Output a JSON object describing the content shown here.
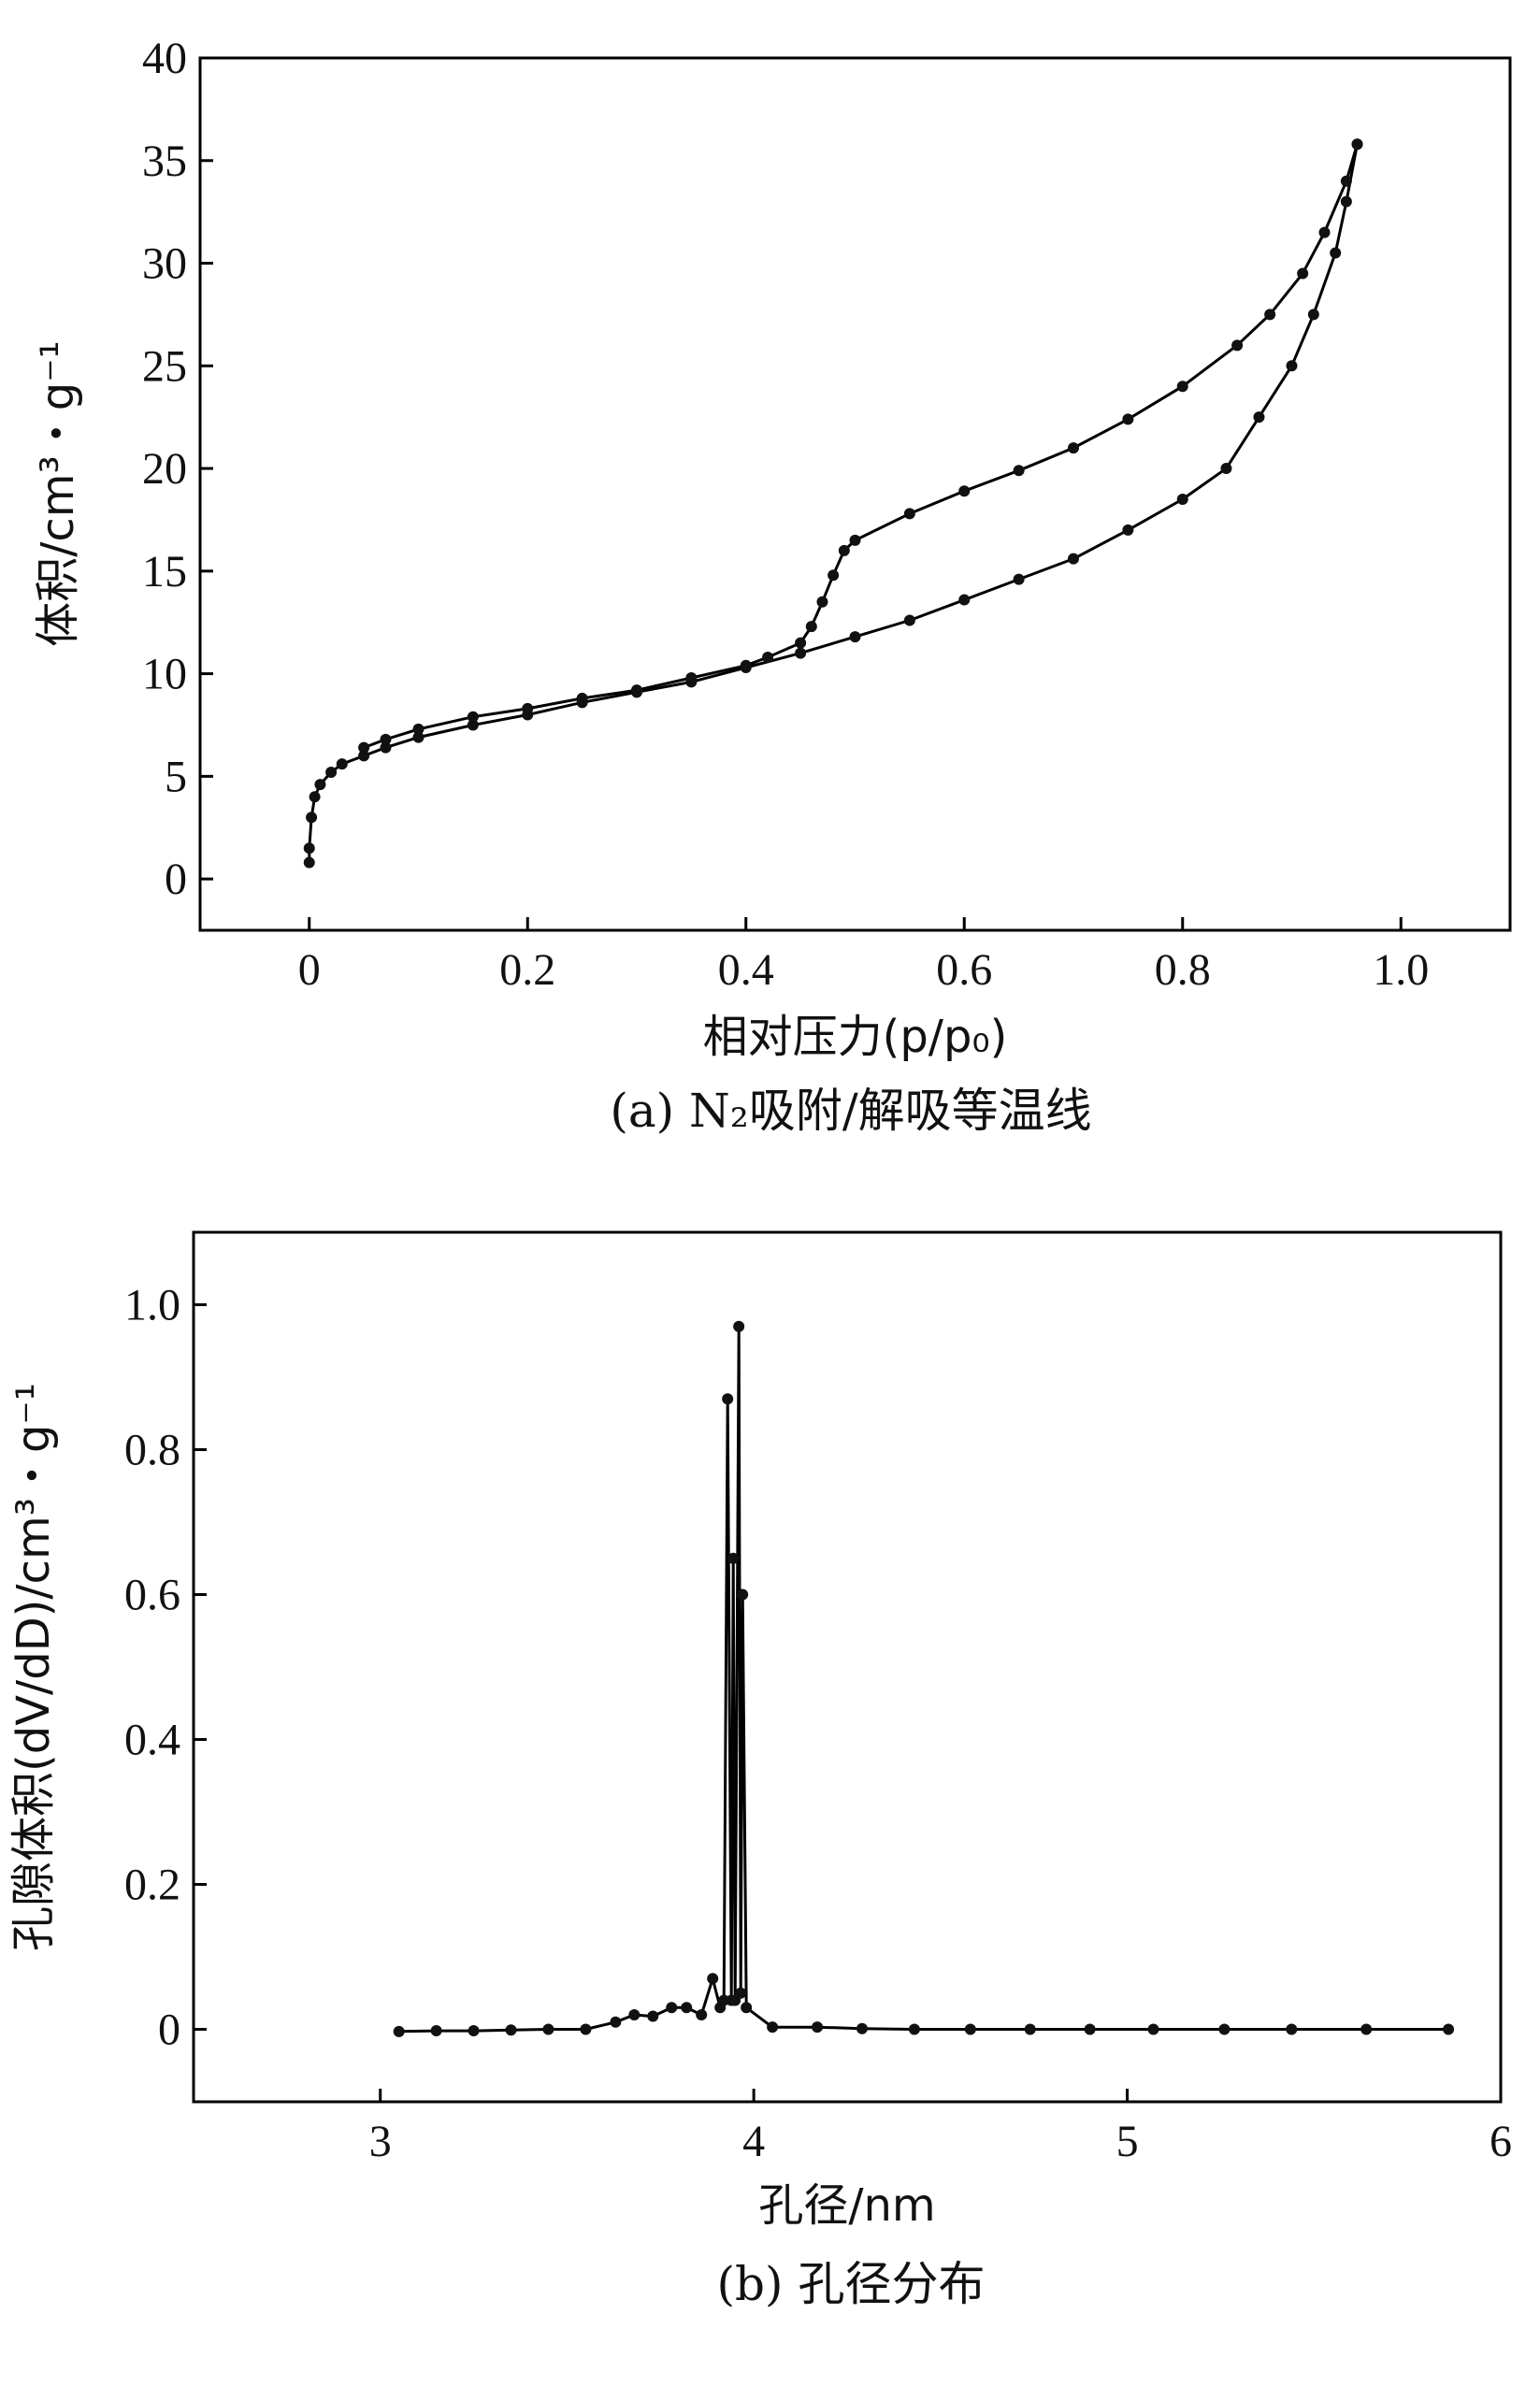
{
  "chart_data": [
    {
      "type": "line",
      "caption": "(a) N₂吸附/解吸等温线",
      "xlabel": "相对压力(p/p₀)",
      "ylabel": "体积/cm³・g⁻¹",
      "xlim": [
        -0.1,
        1.1
      ],
      "ylim": [
        -2.5,
        40
      ],
      "x_ticks": [
        0,
        0.2,
        0.4,
        0.6,
        0.8,
        1.0
      ],
      "x_tick_labels": [
        "0",
        "0.2",
        "0.4",
        "0.6",
        "0.8",
        "1.0"
      ],
      "y_ticks": [
        0,
        5,
        10,
        15,
        20,
        25,
        30,
        35,
        40
      ],
      "y_tick_labels": [
        "0",
        "5",
        "10",
        "15",
        "20",
        "25",
        "30",
        "35",
        "40"
      ],
      "grid": false,
      "series": [
        {
          "x": [
            0.0,
            0.0,
            0.002,
            0.005,
            0.01,
            0.02,
            0.03,
            0.05,
            0.07,
            0.1,
            0.15,
            0.2,
            0.25,
            0.3,
            0.35,
            0.4,
            0.45,
            0.5,
            0.55,
            0.6,
            0.65,
            0.7,
            0.75,
            0.8,
            0.84,
            0.87,
            0.9,
            0.92,
            0.94,
            0.95,
            0.96
          ],
          "y": [
            0.8,
            1.5,
            3.0,
            4.0,
            4.6,
            5.2,
            5.6,
            6.0,
            6.4,
            6.9,
            7.5,
            8.0,
            8.6,
            9.1,
            9.6,
            10.3,
            11.0,
            11.8,
            12.6,
            13.6,
            14.6,
            15.6,
            17.0,
            18.5,
            20.0,
            22.5,
            25.0,
            27.5,
            30.5,
            33.0,
            35.8
          ]
        },
        {
          "x": [
            0.96,
            0.95,
            0.93,
            0.91,
            0.88,
            0.85,
            0.8,
            0.75,
            0.7,
            0.65,
            0.6,
            0.55,
            0.5,
            0.49,
            0.48,
            0.47,
            0.46,
            0.45,
            0.42,
            0.4,
            0.35,
            0.3,
            0.25,
            0.2,
            0.15,
            0.1,
            0.07,
            0.05
          ],
          "y": [
            35.8,
            34.0,
            31.5,
            29.5,
            27.5,
            26.0,
            24.0,
            22.4,
            21.0,
            19.9,
            18.9,
            17.8,
            16.5,
            16.0,
            14.8,
            13.5,
            12.3,
            11.5,
            10.8,
            10.4,
            9.8,
            9.2,
            8.8,
            8.3,
            7.9,
            7.3,
            6.8,
            6.4
          ]
        }
      ]
    },
    {
      "type": "line",
      "caption": "(b) 孔径分布",
      "xlabel": "孔径/nm",
      "ylabel": "孔隙体积(dV/dD)/cm³・g⁻¹",
      "xlim": [
        2.5,
        6
      ],
      "ylim": [
        -0.1,
        1.1
      ],
      "x_ticks": [
        3,
        4,
        5,
        6
      ],
      "x_tick_labels": [
        "3",
        "4",
        "5",
        "6"
      ],
      "y_ticks": [
        0,
        0.2,
        0.4,
        0.6,
        0.8,
        1.0
      ],
      "y_tick_labels": [
        "0",
        "0.2",
        "0.4",
        "0.6",
        "0.8",
        "1.0"
      ],
      "grid": false,
      "series": [
        {
          "x": [
            3.05,
            3.15,
            3.25,
            3.35,
            3.45,
            3.55,
            3.63,
            3.68,
            3.73,
            3.78,
            3.82,
            3.86,
            3.89,
            3.91,
            3.92,
            3.93,
            3.94,
            3.945,
            3.95,
            3.96,
            3.965,
            3.97,
            3.98,
            4.05,
            4.17,
            4.29,
            4.43,
            4.58,
            4.74,
            4.9,
            5.07,
            5.26,
            5.44,
            5.64,
            5.86
          ],
          "y": [
            -0.003,
            -0.002,
            -0.002,
            -0.001,
            0.0,
            0.0,
            0.01,
            0.02,
            0.018,
            0.03,
            0.03,
            0.02,
            0.07,
            0.03,
            0.04,
            0.87,
            0.04,
            0.65,
            0.04,
            0.97,
            0.05,
            0.6,
            0.03,
            0.003,
            0.003,
            0.001,
            0.0,
            0.0,
            0.0,
            0.0,
            0.0,
            0.0,
            0.0,
            0.0,
            0.0
          ]
        }
      ]
    }
  ]
}
